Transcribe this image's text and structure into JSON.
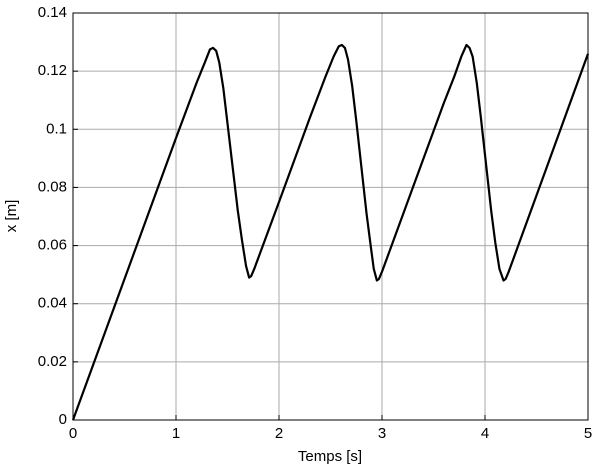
{
  "chart_data": {
    "type": "line",
    "xlabel": "Temps [s]",
    "ylabel": "x [m]",
    "x": [
      0,
      0.5,
      1.0,
      1.2,
      1.28,
      1.33,
      1.36,
      1.39,
      1.42,
      1.46,
      1.5,
      1.55,
      1.6,
      1.64,
      1.68,
      1.71,
      1.73,
      1.76,
      2.0,
      2.3,
      2.45,
      2.53,
      2.58,
      2.61,
      2.64,
      2.67,
      2.71,
      2.75,
      2.8,
      2.85,
      2.89,
      2.92,
      2.95,
      2.97,
      3.0,
      3.3,
      3.6,
      3.7,
      3.77,
      3.82,
      3.85,
      3.88,
      3.92,
      3.96,
      4.01,
      4.06,
      4.1,
      4.14,
      4.18,
      4.2,
      4.23,
      4.6,
      5.0
    ],
    "values": [
      0,
      0.0485,
      0.097,
      0.116,
      0.123,
      0.1275,
      0.128,
      0.127,
      0.123,
      0.114,
      0.102,
      0.087,
      0.072,
      0.062,
      0.053,
      0.049,
      0.0495,
      0.052,
      0.075,
      0.104,
      0.118,
      0.125,
      0.1285,
      0.129,
      0.128,
      0.124,
      0.115,
      0.103,
      0.087,
      0.071,
      0.06,
      0.052,
      0.048,
      0.0485,
      0.051,
      0.08,
      0.109,
      0.118,
      0.125,
      0.129,
      0.128,
      0.125,
      0.116,
      0.104,
      0.088,
      0.072,
      0.061,
      0.052,
      0.048,
      0.0485,
      0.051,
      0.087,
      0.126
    ],
    "color": "#000000",
    "xlim": [
      0,
      5
    ],
    "xticks": [
      0,
      1,
      2,
      3,
      4,
      5
    ],
    "ylim": [
      0,
      0.14
    ],
    "yticks": [
      0,
      0.02,
      0.04,
      0.06,
      0.08,
      0.1,
      0.12,
      0.14
    ],
    "grid": true
  }
}
